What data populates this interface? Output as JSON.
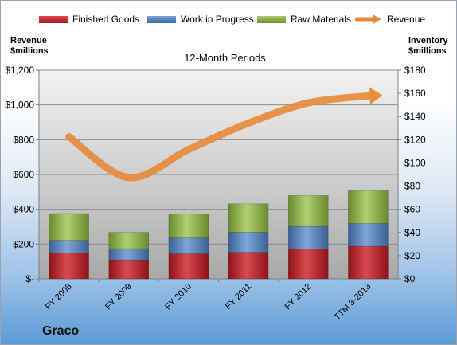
{
  "chart_data": {
    "type": "bar",
    "subtitle": "12-Month Periods",
    "categories": [
      "FY 2008",
      "FY 2009",
      "FY 2010",
      "FY 2011",
      "FY 2012",
      "TTM 3-2013"
    ],
    "series": [
      {
        "name": "Finished Goods",
        "values": [
          22.3,
          16.4,
          21.6,
          22.9,
          25.9,
          28.1
        ],
        "color": "#c0232a",
        "axis": "right"
      },
      {
        "name": "Work in Progress",
        "values": [
          10.9,
          9.7,
          13.7,
          17.4,
          19.3,
          19.6
        ],
        "color": "#4f81bd",
        "axis": "right"
      },
      {
        "name": "Raw Materials",
        "values": [
          23.1,
          14.0,
          20.6,
          24.4,
          26.7,
          28.3
        ],
        "color": "#8fb04a",
        "axis": "right"
      },
      {
        "name": "Revenue",
        "values": [
          817,
          582,
          744,
          895,
          1012,
          1052
        ],
        "color": "#e8893a",
        "axis": "left",
        "style": "line"
      }
    ],
    "left_axis": {
      "label": "Revenue $millions",
      "ylim": [
        0,
        1200
      ],
      "ticks": [
        "$-",
        "$200",
        "$400",
        "$600",
        "$800",
        "$1,000",
        "$1,200"
      ]
    },
    "right_axis": {
      "label": "Inventory $millions",
      "ylim": [
        0,
        180
      ],
      "ticks": [
        "$0",
        "$20",
        "$40",
        "$60",
        "$80",
        "$100",
        "$120",
        "$140",
        "$160",
        "$180"
      ]
    },
    "grid": true,
    "legend_position": "top"
  },
  "company": "Graco",
  "labels": {
    "left_axis_line1": "Revenue",
    "left_axis_line2": "$millions",
    "right_axis_line1": "Inventory",
    "right_axis_line2": "$millions"
  }
}
